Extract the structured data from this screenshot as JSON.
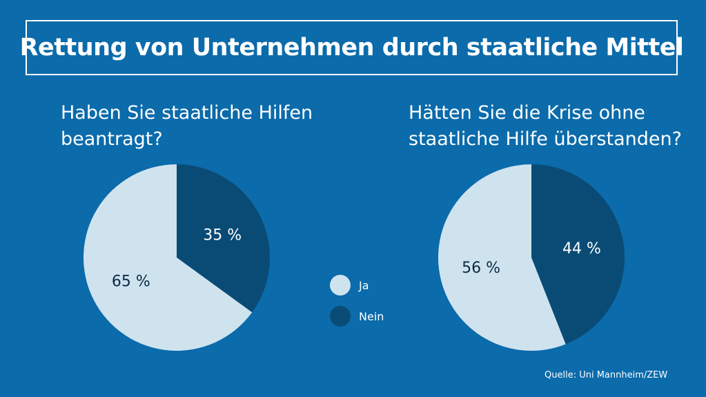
{
  "title": "Rettung von Unternehmen durch staatliche Mittel",
  "colors": {
    "background": "#0b6bab",
    "ja": "#cfe3ef",
    "nein": "#0a4b76",
    "label_dark": "#0b2a44",
    "label_light": "#ffffff"
  },
  "legend": [
    {
      "label": "Ja",
      "color": "#cfe3ef"
    },
    {
      "label": "Nein",
      "color": "#0a4b76"
    }
  ],
  "source": "Quelle: Uni Mannheim/ZEW",
  "chart_data": [
    {
      "type": "pie",
      "title_lines": [
        "Haben Sie staatliche Hilfen",
        "beantragt?"
      ],
      "slices": [
        {
          "name": "Nein",
          "value": 35,
          "label": "35 %"
        },
        {
          "name": "Ja",
          "value": 65,
          "label": "65 %"
        }
      ]
    },
    {
      "type": "pie",
      "title_lines": [
        "Hätten Sie die Krise ohne",
        "staatliche Hilfe überstanden?"
      ],
      "slices": [
        {
          "name": "Nein",
          "value": 44,
          "label": "44 %"
        },
        {
          "name": "Ja",
          "value": 56,
          "label": "56 %"
        }
      ]
    }
  ]
}
